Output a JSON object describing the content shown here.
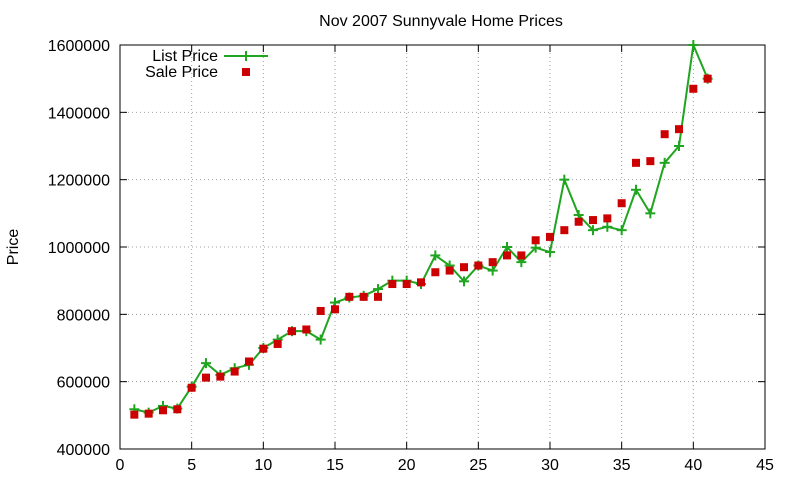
{
  "chart_data": {
    "type": "scatter",
    "title": "Nov 2007 Sunnyvale Home Prices",
    "xlabel": "",
    "ylabel": "Price",
    "xlim": [
      0,
      45
    ],
    "ylim": [
      400000,
      1600000
    ],
    "x_ticks": [
      0,
      5,
      10,
      15,
      20,
      25,
      30,
      35,
      40,
      45
    ],
    "y_ticks": [
      400000,
      600000,
      800000,
      1000000,
      1200000,
      1400000,
      1600000
    ],
    "grid": true,
    "legend_position": "top-left",
    "series": [
      {
        "name": "List Price",
        "style": "line+plus-markers",
        "color": "#1fa51f",
        "x": [
          1,
          2,
          3,
          4,
          5,
          6,
          7,
          8,
          9,
          10,
          11,
          12,
          13,
          14,
          15,
          16,
          17,
          18,
          19,
          20,
          21,
          22,
          23,
          24,
          25,
          26,
          27,
          28,
          29,
          30,
          31,
          32,
          33,
          34,
          35,
          36,
          37,
          38,
          39,
          40,
          41
        ],
        "values": [
          518000,
          508000,
          528000,
          520000,
          585000,
          655000,
          620000,
          640000,
          650000,
          700000,
          725000,
          750000,
          750000,
          725000,
          835000,
          850000,
          855000,
          875000,
          900000,
          900000,
          890000,
          975000,
          945000,
          898000,
          945000,
          930000,
          1000000,
          955000,
          998000,
          985000,
          1200000,
          1095000,
          1050000,
          1060000,
          1050000,
          1170000,
          1100000,
          1250000,
          1300000,
          1600000,
          1500000
        ]
      },
      {
        "name": "Sale Price",
        "style": "square-markers",
        "color": "#cc0000",
        "x": [
          1,
          2,
          3,
          4,
          5,
          6,
          7,
          8,
          9,
          10,
          11,
          12,
          13,
          14,
          15,
          16,
          17,
          18,
          19,
          20,
          21,
          22,
          23,
          24,
          25,
          26,
          27,
          28,
          29,
          30,
          31,
          32,
          33,
          34,
          35,
          36,
          37,
          38,
          39,
          40,
          41
        ],
        "values": [
          502000,
          505000,
          515000,
          518000,
          582000,
          612000,
          615000,
          630000,
          660000,
          698000,
          712000,
          750000,
          755000,
          810000,
          815000,
          852000,
          852000,
          852000,
          890000,
          890000,
          895000,
          925000,
          930000,
          940000,
          945000,
          955000,
          975000,
          975000,
          1020000,
          1030000,
          1050000,
          1075000,
          1080000,
          1085000,
          1130000,
          1250000,
          1255000,
          1335000,
          1350000,
          1470000,
          1500000
        ]
      }
    ]
  }
}
